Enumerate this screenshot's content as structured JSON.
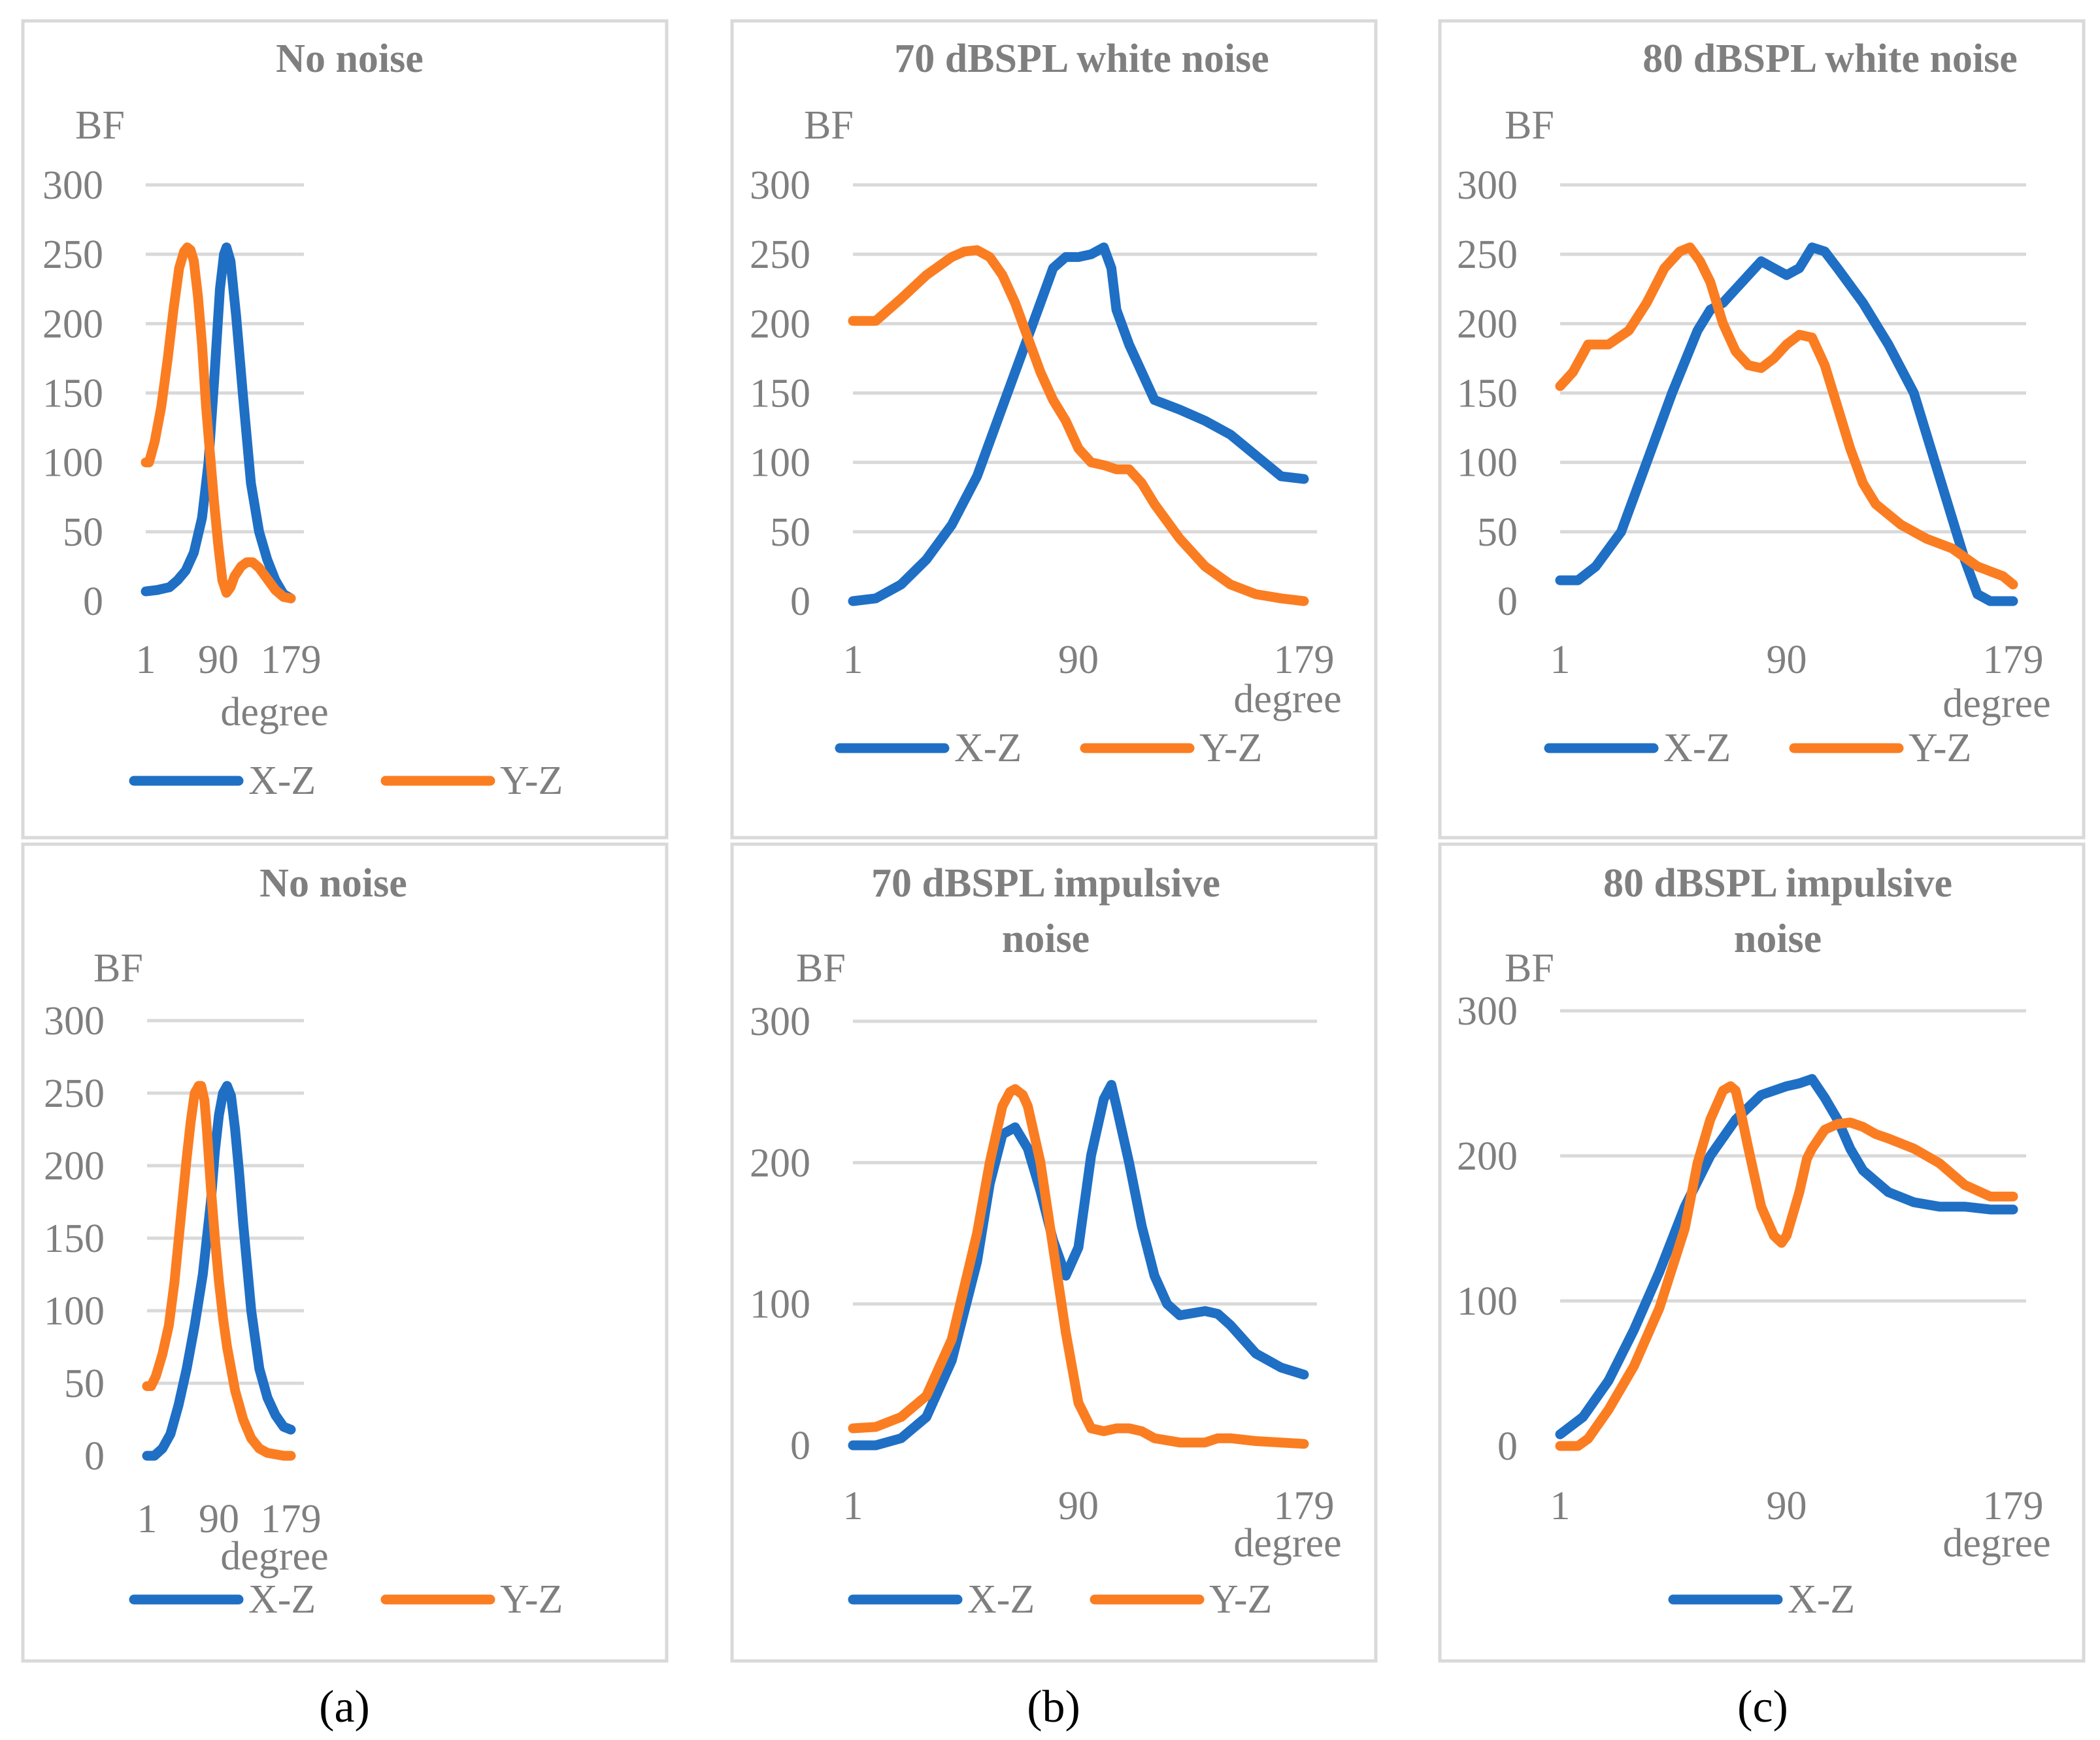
{
  "colors": {
    "X-Z": "#1f6fc5",
    "Y-Z": "#fb7d22",
    "grid": "#d9d9d9",
    "text": "#7f7f7f"
  },
  "sublabels": [
    "(a)",
    "(b)",
    "(c)"
  ],
  "chart_data": [
    {
      "type": "line",
      "title": "No noise",
      "ylabel": "BF",
      "xlabel": "degree",
      "xlim": [
        1,
        179
      ],
      "xticks": [
        1,
        90,
        179
      ],
      "ylim": [
        0,
        300
      ],
      "yticks": [
        0,
        50,
        100,
        150,
        200,
        250,
        300
      ],
      "grid": true,
      "legend": "bottom",
      "legend_entries": [
        "X-Z",
        "Y-Z"
      ],
      "series": [
        {
          "name": "X-Z",
          "x": [
            1,
            15,
            30,
            40,
            50,
            60,
            70,
            78,
            85,
            92,
            97,
            100,
            105,
            112,
            120,
            130,
            140,
            150,
            160,
            170,
            179
          ],
          "y": [
            7,
            8,
            10,
            15,
            22,
            35,
            60,
            100,
            160,
            225,
            250,
            255,
            245,
            205,
            150,
            85,
            50,
            30,
            15,
            5,
            2
          ]
        },
        {
          "name": "Y-Z",
          "x": [
            1,
            5,
            12,
            20,
            28,
            35,
            42,
            48,
            52,
            56,
            60,
            65,
            70,
            75,
            80,
            85,
            90,
            95,
            100,
            105,
            110,
            118,
            125,
            132,
            140,
            150,
            160,
            170,
            179
          ],
          "y": [
            100,
            100,
            115,
            140,
            175,
            210,
            240,
            252,
            255,
            253,
            245,
            220,
            185,
            140,
            105,
            70,
            40,
            15,
            6,
            10,
            18,
            25,
            28,
            28,
            24,
            16,
            8,
            3,
            2
          ]
        }
      ]
    },
    {
      "type": "line",
      "title": "70 dBSPL white noise",
      "ylabel": "BF",
      "xlabel": "degree",
      "xlim": [
        1,
        179
      ],
      "xticks": [
        1,
        90,
        179
      ],
      "ylim": [
        0,
        300
      ],
      "yticks": [
        0,
        50,
        100,
        150,
        200,
        250,
        300
      ],
      "grid": true,
      "legend": "bottom",
      "legend_entries": [
        "X-Z",
        "Y-Z"
      ],
      "series": [
        {
          "name": "X-Z",
          "x": [
            1,
            10,
            20,
            30,
            40,
            50,
            60,
            70,
            75,
            80,
            85,
            90,
            95,
            100,
            103,
            105,
            110,
            115,
            120,
            130,
            140,
            150,
            160,
            170,
            179
          ],
          "y": [
            0,
            2,
            12,
            30,
            55,
            90,
            140,
            190,
            215,
            240,
            248,
            248,
            250,
            255,
            240,
            210,
            185,
            165,
            145,
            138,
            130,
            120,
            105,
            90,
            88
          ]
        },
        {
          "name": "Y-Z",
          "x": [
            1,
            10,
            20,
            30,
            40,
            45,
            50,
            55,
            60,
            65,
            70,
            75,
            80,
            85,
            90,
            95,
            100,
            105,
            110,
            115,
            120,
            130,
            140,
            150,
            160,
            170,
            179
          ],
          "y": [
            202,
            202,
            218,
            235,
            248,
            252,
            253,
            248,
            235,
            215,
            190,
            165,
            145,
            130,
            110,
            100,
            98,
            95,
            95,
            85,
            70,
            45,
            25,
            12,
            5,
            2,
            0
          ]
        }
      ]
    },
    {
      "type": "line",
      "title": "80 dBSPL white noise",
      "ylabel": "BF",
      "xlabel": "degree",
      "xlim": [
        1,
        179
      ],
      "xticks": [
        1,
        90,
        179
      ],
      "ylim": [
        0,
        300
      ],
      "yticks": [
        0,
        50,
        100,
        150,
        200,
        250,
        300
      ],
      "grid": true,
      "legend": "bottom",
      "legend_entries": [
        "X-Z",
        "Y-Z"
      ],
      "series": [
        {
          "name": "X-Z",
          "x": [
            1,
            8,
            15,
            25,
            35,
            45,
            55,
            60,
            65,
            70,
            80,
            85,
            90,
            95,
            100,
            105,
            110,
            120,
            130,
            140,
            150,
            160,
            165,
            170,
            179
          ],
          "y": [
            15,
            15,
            25,
            50,
            100,
            150,
            195,
            210,
            215,
            225,
            245,
            240,
            235,
            240,
            255,
            252,
            240,
            215,
            185,
            150,
            90,
            30,
            5,
            0,
            0
          ]
        },
        {
          "name": "Y-Z",
          "x": [
            1,
            6,
            12,
            20,
            28,
            35,
            42,
            48,
            52,
            56,
            60,
            65,
            70,
            75,
            80,
            85,
            90,
            95,
            100,
            105,
            110,
            115,
            120,
            125,
            135,
            145,
            155,
            165,
            175,
            179
          ],
          "y": [
            155,
            165,
            185,
            185,
            195,
            215,
            240,
            252,
            255,
            245,
            230,
            200,
            180,
            170,
            168,
            175,
            185,
            192,
            190,
            170,
            140,
            110,
            85,
            70,
            55,
            45,
            38,
            25,
            18,
            12
          ]
        }
      ]
    },
    {
      "type": "line",
      "title": "No noise",
      "ylabel": "BF",
      "xlabel": "degree",
      "xlim": [
        1,
        179
      ],
      "xticks": [
        1,
        90,
        179
      ],
      "ylim": [
        0,
        300
      ],
      "yticks": [
        0,
        50,
        100,
        150,
        200,
        250,
        300
      ],
      "grid": true,
      "legend": "bottom",
      "legend_entries": [
        "X-Z",
        "Y-Z"
      ],
      "series": [
        {
          "name": "X-Z",
          "x": [
            1,
            10,
            20,
            30,
            40,
            50,
            60,
            70,
            80,
            85,
            90,
            95,
            100,
            105,
            110,
            115,
            120,
            130,
            140,
            150,
            160,
            170,
            179
          ],
          "y": [
            0,
            0,
            5,
            15,
            35,
            60,
            90,
            125,
            175,
            210,
            235,
            250,
            255,
            248,
            225,
            195,
            160,
            100,
            60,
            40,
            28,
            20,
            18
          ]
        },
        {
          "name": "Y-Z",
          "x": [
            1,
            6,
            12,
            20,
            28,
            35,
            42,
            50,
            55,
            60,
            65,
            68,
            72,
            75,
            80,
            85,
            90,
            95,
            100,
            110,
            120,
            130,
            140,
            150,
            160,
            170,
            179
          ],
          "y": [
            48,
            48,
            55,
            70,
            90,
            120,
            160,
            205,
            230,
            250,
            255,
            255,
            245,
            225,
            185,
            150,
            120,
            95,
            75,
            45,
            25,
            12,
            5,
            2,
            1,
            0,
            0
          ]
        }
      ]
    },
    {
      "type": "line",
      "title": "70 dBSPL impulsive noise",
      "ylabel": "BF",
      "xlabel": "degree",
      "xlim": [
        1,
        179
      ],
      "xticks": [
        1,
        90,
        179
      ],
      "ylim": [
        0,
        300
      ],
      "yticks": [
        0,
        100,
        200,
        300
      ],
      "grid": true,
      "legend": "bottom",
      "legend_entries": [
        "X-Z",
        "Y-Z"
      ],
      "series": [
        {
          "name": "X-Z",
          "x": [
            1,
            10,
            20,
            30,
            40,
            50,
            55,
            60,
            65,
            70,
            75,
            80,
            85,
            90,
            95,
            100,
            103,
            105,
            110,
            115,
            120,
            125,
            130,
            140,
            145,
            150,
            160,
            170,
            179
          ],
          "y": [
            0,
            0,
            5,
            20,
            60,
            130,
            185,
            220,
            225,
            210,
            180,
            145,
            120,
            140,
            205,
            245,
            255,
            240,
            200,
            155,
            120,
            100,
            92,
            95,
            93,
            85,
            65,
            55,
            50
          ]
        },
        {
          "name": "Y-Z",
          "x": [
            1,
            10,
            20,
            30,
            40,
            50,
            55,
            60,
            63,
            65,
            68,
            70,
            75,
            80,
            85,
            90,
            95,
            100,
            105,
            110,
            115,
            120,
            130,
            140,
            145,
            150,
            160,
            170,
            179
          ],
          "y": [
            12,
            13,
            20,
            35,
            75,
            150,
            200,
            240,
            250,
            252,
            248,
            240,
            200,
            140,
            80,
            30,
            12,
            10,
            12,
            12,
            10,
            5,
            2,
            2,
            5,
            5,
            3,
            2,
            1
          ]
        }
      ]
    },
    {
      "type": "line",
      "title": "80 dBSPL impulsive noise",
      "ylabel": "BF",
      "xlabel": "degree",
      "xlim": [
        1,
        179
      ],
      "xticks": [
        1,
        90,
        179
      ],
      "ylim": [
        0,
        300
      ],
      "yticks": [
        0,
        100,
        200,
        300
      ],
      "grid": true,
      "legend": "bottom",
      "legend_entries": [
        "X-Z"
      ],
      "series": [
        {
          "name": "X-Z",
          "x": [
            1,
            10,
            20,
            30,
            40,
            50,
            60,
            70,
            80,
            90,
            95,
            100,
            105,
            110,
            115,
            120,
            130,
            140,
            150,
            160,
            170,
            179
          ],
          "y": [
            8,
            20,
            45,
            80,
            120,
            165,
            200,
            225,
            242,
            248,
            250,
            253,
            240,
            225,
            205,
            190,
            175,
            168,
            165,
            165,
            163,
            163
          ]
        },
        {
          "name": "",
          "x": [
            1,
            8,
            12,
            20,
            30,
            40,
            50,
            55,
            60,
            65,
            68,
            70,
            72,
            75,
            80,
            85,
            88,
            90,
            95,
            98,
            100,
            105,
            110,
            115,
            120,
            125,
            130,
            140,
            150,
            160,
            170,
            179
          ],
          "y": [
            0,
            0,
            5,
            25,
            55,
            95,
            150,
            195,
            225,
            245,
            248,
            245,
            230,
            205,
            165,
            145,
            140,
            145,
            175,
            198,
            205,
            218,
            222,
            223,
            220,
            215,
            212,
            205,
            195,
            180,
            172,
            172
          ]
        }
      ]
    }
  ]
}
